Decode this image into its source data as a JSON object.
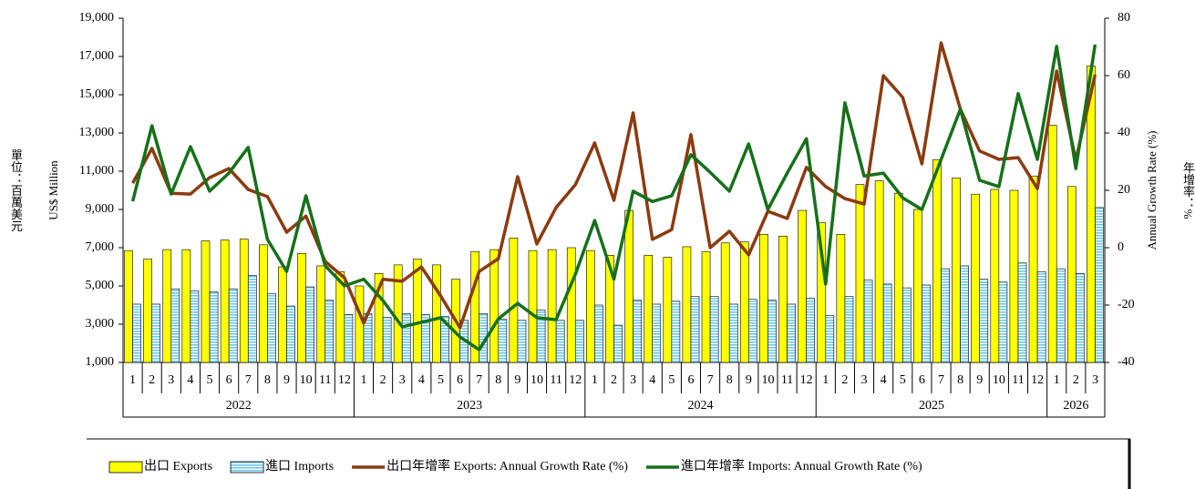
{
  "chart_data": {
    "type": "bar-line",
    "y_label": "US$ Million",
    "y_unit_label": "單位：百萬美元",
    "y2_label": "Annual Growth Rate (%)",
    "y2_unit_label": "年增率：%",
    "groups": [
      {
        "label": "2022",
        "categories": [
          "1",
          "2",
          "3",
          "4",
          "5",
          "6",
          "7",
          "8",
          "9",
          "10",
          "11",
          "12"
        ]
      },
      {
        "label": "2023",
        "categories": [
          "1",
          "2",
          "3",
          "4",
          "5",
          "6",
          "7",
          "8",
          "9",
          "10",
          "11",
          "12"
        ]
      },
      {
        "label": "2024",
        "categories": [
          "1",
          "2",
          "3",
          "4",
          "5",
          "6",
          "7",
          "8",
          "9",
          "10",
          "11",
          "12"
        ]
      },
      {
        "label": "2025",
        "categories": [
          "1",
          "2",
          "3",
          "4",
          "5",
          "6",
          "7",
          "8",
          "9",
          "10",
          "11",
          "12"
        ]
      },
      {
        "label": "2026",
        "categories": [
          "1",
          "2",
          "3"
        ]
      }
    ],
    "series": [
      {
        "name": "出口 Exports",
        "type": "bar",
        "color": "#ffff00",
        "values": [
          6850,
          6400,
          6900,
          6900,
          7350,
          7400,
          7450,
          7150,
          6000,
          6700,
          6050,
          5750,
          5000,
          5650,
          6100,
          6400,
          6100,
          5350,
          6800,
          6900,
          7500,
          6850,
          6900,
          7000,
          6850,
          6600,
          8950,
          6600,
          6500,
          7050,
          6800,
          7250,
          7300,
          7700,
          7600,
          8950,
          8300,
          7700,
          10300,
          10500,
          9850,
          9000,
          11600,
          10650,
          9800,
          10050,
          10000,
          10750,
          13400,
          10200,
          16500
        ]
      },
      {
        "name": "進口 Imports",
        "type": "bar",
        "color": "#6cc7ee",
        "values": [
          4050,
          4050,
          4850,
          4750,
          4700,
          4850,
          5550,
          4600,
          3950,
          4950,
          4250,
          3500,
          3550,
          3350,
          3550,
          3500,
          3400,
          3200,
          3550,
          3250,
          3200,
          3750,
          3200,
          3200,
          4000,
          2950,
          4250,
          4050,
          4200,
          4450,
          4450,
          4050,
          4300,
          4250,
          4050,
          4350,
          3450,
          4450,
          5300,
          5100,
          4900,
          5050,
          5900,
          6050,
          5350,
          5200,
          6200,
          5750,
          5900,
          5650,
          9100
        ]
      },
      {
        "name": "出口年增率 Exports: Annual Growth Rate (%)",
        "type": "line",
        "axis": "y2",
        "color": "#8b3a0f",
        "values": [
          22.5,
          34.6,
          19,
          18.7,
          24.4,
          27.6,
          20.3,
          17.8,
          5.4,
          11,
          -4.8,
          -10.5,
          -26.3,
          -11,
          -11.7,
          -6.7,
          -16.8,
          -27.9,
          -8.3,
          -3.8,
          24.8,
          1.3,
          14,
          22,
          36.5,
          16.5,
          47,
          2.9,
          6.3,
          39.4,
          0,
          5.7,
          -2.5,
          12.7,
          10.2,
          28,
          21.3,
          17.1,
          15.2,
          60,
          52.4,
          29.2,
          71.4,
          48.3,
          33.7,
          30.8,
          31.4,
          20.6,
          61.6,
          30.5,
          60.3
        ]
      },
      {
        "name": "進口年增率 Imports: Annual Growth Rate (%)",
        "type": "line",
        "axis": "y2",
        "color": "#16701a",
        "values": [
          16.2,
          42.5,
          18.7,
          35.2,
          19.7,
          26,
          35,
          2.9,
          -8.3,
          18.1,
          -6.3,
          -13.3,
          -11,
          -18.4,
          -27.6,
          -26,
          -24.4,
          -31.1,
          -35.6,
          -24.8,
          -19.4,
          -24.4,
          -25.1,
          -9.2,
          9.5,
          -11,
          19.7,
          16.1,
          18.1,
          32.4,
          26.3,
          19.7,
          36.2,
          13.3,
          26,
          38,
          -12.7,
          50.5,
          25,
          26,
          17.4,
          13.3,
          30.8,
          48.3,
          23.5,
          21.3,
          53.7,
          30.8,
          70.2,
          27.6,
          70.8
        ]
      }
    ],
    "ylim": [
      1000,
      19000
    ],
    "yticks": [
      {
        "value": 1000,
        "label": "1,000"
      },
      {
        "value": 3000,
        "label": "3,000"
      },
      {
        "value": 5000,
        "label": "5,000"
      },
      {
        "value": 7000,
        "label": "7,000"
      },
      {
        "value": 9000,
        "label": "9,000"
      },
      {
        "value": 11000,
        "label": "11,000"
      },
      {
        "value": 13000,
        "label": "13,000"
      },
      {
        "value": 15000,
        "label": "15,000"
      },
      {
        "value": 17000,
        "label": "17,000"
      },
      {
        "value": 19000,
        "label": "19,000"
      }
    ],
    "y2lim": [
      -40,
      80
    ],
    "y2ticks": [
      -40,
      -20,
      0,
      20,
      40,
      60,
      80
    ]
  }
}
